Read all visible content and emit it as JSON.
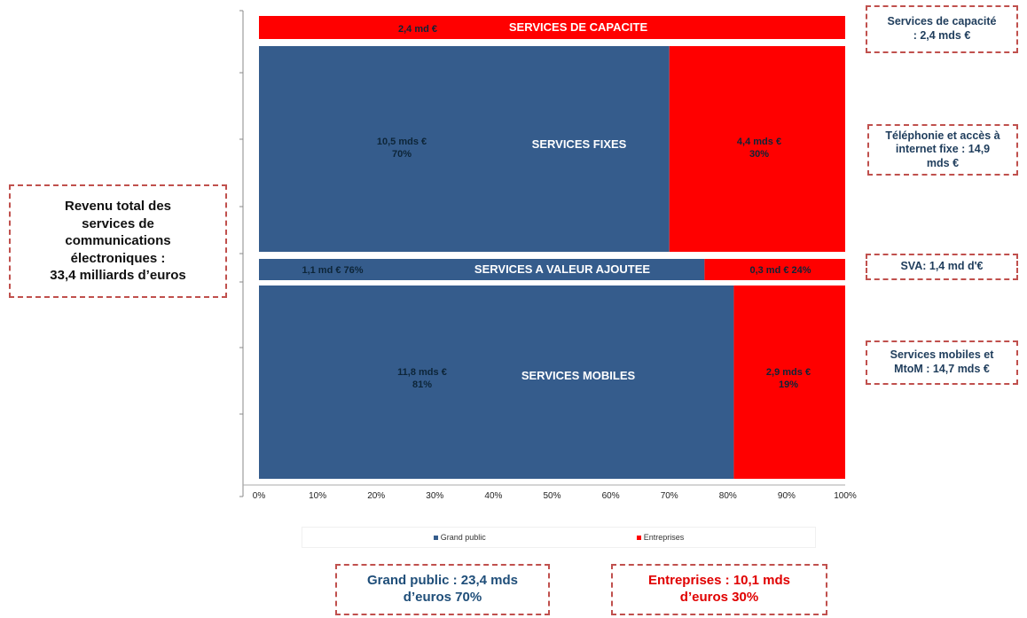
{
  "total_box": {
    "text": "Revenu total des\nservices de\ncommunications\nélectroniques :\n33,4 milliards d’euros"
  },
  "right_boxes": [
    {
      "text": "Services de capacité\n: 2,4 mds €"
    },
    {
      "text": "Téléphonie et accès à\ninternet fixe : 14,9\nmds €"
    },
    {
      "text": "SVA: 1,4 md d'€"
    },
    {
      "text": "Services mobiles et\nMtoM : 14,7 mds €"
    }
  ],
  "bottom_boxes": {
    "grand_public": "Grand public :  23,4 mds\nd’euros 70%",
    "entreprises": "Entreprises :  10,1 mds\nd’euros 30%"
  },
  "colors": {
    "grand_public": "#355c8c",
    "entreprises": "#ff0000"
  },
  "chart_data": {
    "type": "bar",
    "orientation": "horizontal-stacked-percent",
    "xlim": [
      0,
      100
    ],
    "x_ticks": [
      "0%",
      "10%",
      "20%",
      "30%",
      "40%",
      "50%",
      "60%",
      "70%",
      "80%",
      "90%",
      "100%"
    ],
    "categories": [
      "SERVICES DE CAPACITE",
      "SERVICES FIXES",
      "SERVICES A VALEUR AJOUTEE",
      "SERVICES MOBILES"
    ],
    "series": [
      {
        "name": "Grand public",
        "values": [
          0,
          70,
          76,
          81
        ],
        "labels": [
          "",
          "10,5 mds €\n70%",
          "1,1 md €  76%",
          "11,8 mds €\n81%"
        ]
      },
      {
        "name": "Entreprises",
        "values": [
          100,
          30,
          24,
          19
        ],
        "labels": [
          "2,4 md €",
          "4,4 mds €\n30%",
          "0,3 md €  24%",
          "2,9 mds €\n19%"
        ]
      }
    ],
    "legend_position": "bottom"
  }
}
